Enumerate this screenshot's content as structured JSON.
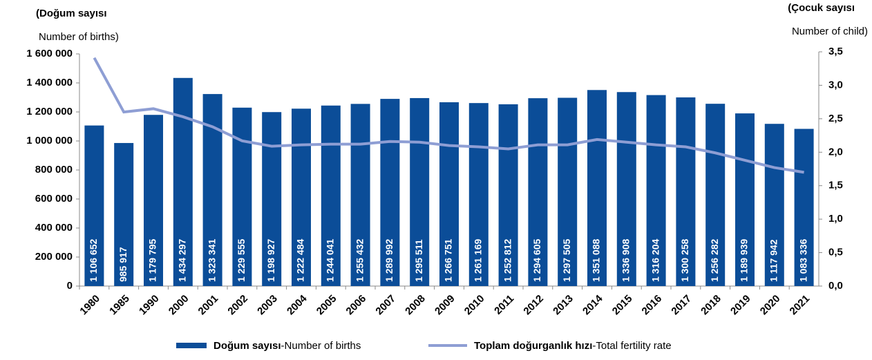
{
  "chart_data": {
    "type": "bar_line",
    "y_label_top": "(Doğum sayısı",
    "y_label_bottom": "Number of births)",
    "y2_label_top": "(Çocuk sayısı",
    "y2_label_bottom": "Number of child)",
    "categories": [
      "1980",
      "1985",
      "1990",
      "2000",
      "2001",
      "2002",
      "2003",
      "2004",
      "2005",
      "2006",
      "2007",
      "2008",
      "2009",
      "2010",
      "2011",
      "2012",
      "2013",
      "2014",
      "2015",
      "2016",
      "2017",
      "2018",
      "2019",
      "2020",
      "2021"
    ],
    "series": [
      {
        "name": "Doğum sayısı-Number of births",
        "type": "bar",
        "color": "#0b4d98",
        "values": [
          1106652,
          985917,
          1179795,
          1434297,
          1323341,
          1229555,
          1198927,
          1222484,
          1244041,
          1255432,
          1289992,
          1295511,
          1266751,
          1261169,
          1252812,
          1294605,
          1297505,
          1351088,
          1336908,
          1316204,
          1300258,
          1256282,
          1189939,
          1117942,
          1083336
        ],
        "value_labels": [
          "1 106 652",
          "985 917",
          "1 179 795",
          "1 434 297",
          "1 323 341",
          "1 229 555",
          "1 198 927",
          "1 222 484",
          "1 244 041",
          "1 255 432",
          "1 289 992",
          "1 295 511",
          "1 266 751",
          "1 261 169",
          "1 252 812",
          "1 294 605",
          "1 297 505",
          "1 351 088",
          "1 336 908",
          "1 316 204",
          "1 300 258",
          "1 256 282",
          "1 189 939",
          "1 117 942",
          "1 083 336"
        ]
      },
      {
        "name": "Toplam doğurganlık hızı-Total fertility rate",
        "type": "line",
        "axis": "y2",
        "color": "#8e9ed4",
        "values": [
          3.41,
          2.6,
          2.65,
          2.53,
          2.38,
          2.17,
          2.09,
          2.11,
          2.12,
          2.12,
          2.16,
          2.15,
          2.1,
          2.08,
          2.05,
          2.11,
          2.11,
          2.19,
          2.15,
          2.11,
          2.08,
          1.99,
          1.88,
          1.77,
          1.7
        ]
      }
    ],
    "ylim": [
      0,
      1600000
    ],
    "yticks": [
      0,
      {
        "value": 200000,
        "label": "200 000"
      },
      {
        "value": 400000,
        "label": "400 000"
      },
      {
        "value": 600000,
        "label": "600 000"
      },
      {
        "value": 800000,
        "label": "800 000"
      },
      {
        "value": 1000000,
        "label": "1 000 000"
      },
      {
        "value": 1200000,
        "label": "1 200 000"
      },
      {
        "value": 1400000,
        "label": "1 400 000"
      },
      {
        "value": 1600000,
        "label": "1 600 000"
      }
    ],
    "y2lim": [
      0,
      3.5
    ],
    "y2ticks": [
      {
        "value": 0,
        "label": "0,0"
      },
      {
        "value": 0.5,
        "label": "0,5"
      },
      {
        "value": 1,
        "label": "1,0"
      },
      {
        "value": 1.5,
        "label": "1,5"
      },
      {
        "value": 2,
        "label": "2,0"
      },
      {
        "value": 2.5,
        "label": "2,5"
      },
      {
        "value": 3,
        "label": "3,0"
      },
      {
        "value": 3.5,
        "label": "3,5"
      }
    ]
  }
}
